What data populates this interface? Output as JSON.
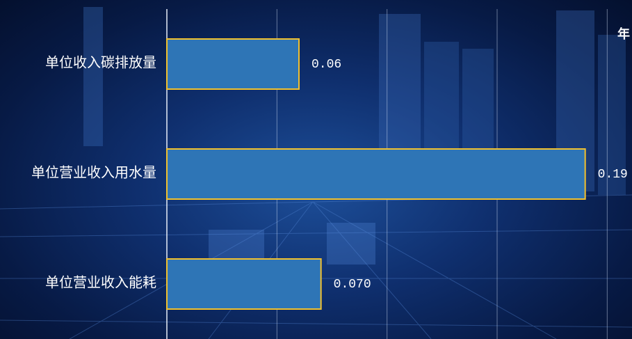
{
  "chart_data": {
    "type": "hbar",
    "annotation": "年",
    "categories": [
      "单位收入碳排放量",
      "单位营业收入用水量",
      "单位营业收入能耗"
    ],
    "values": [
      0.06,
      0.19,
      0.07
    ],
    "value_labels": [
      "0.06",
      "0.19",
      "0.070"
    ],
    "color": "#2e75b6",
    "edge_color": "#f2c12e",
    "xlim": [
      0,
      0.21
    ],
    "xticks": [
      0,
      0.05,
      0.1,
      0.15,
      0.2
    ],
    "grid": true
  }
}
